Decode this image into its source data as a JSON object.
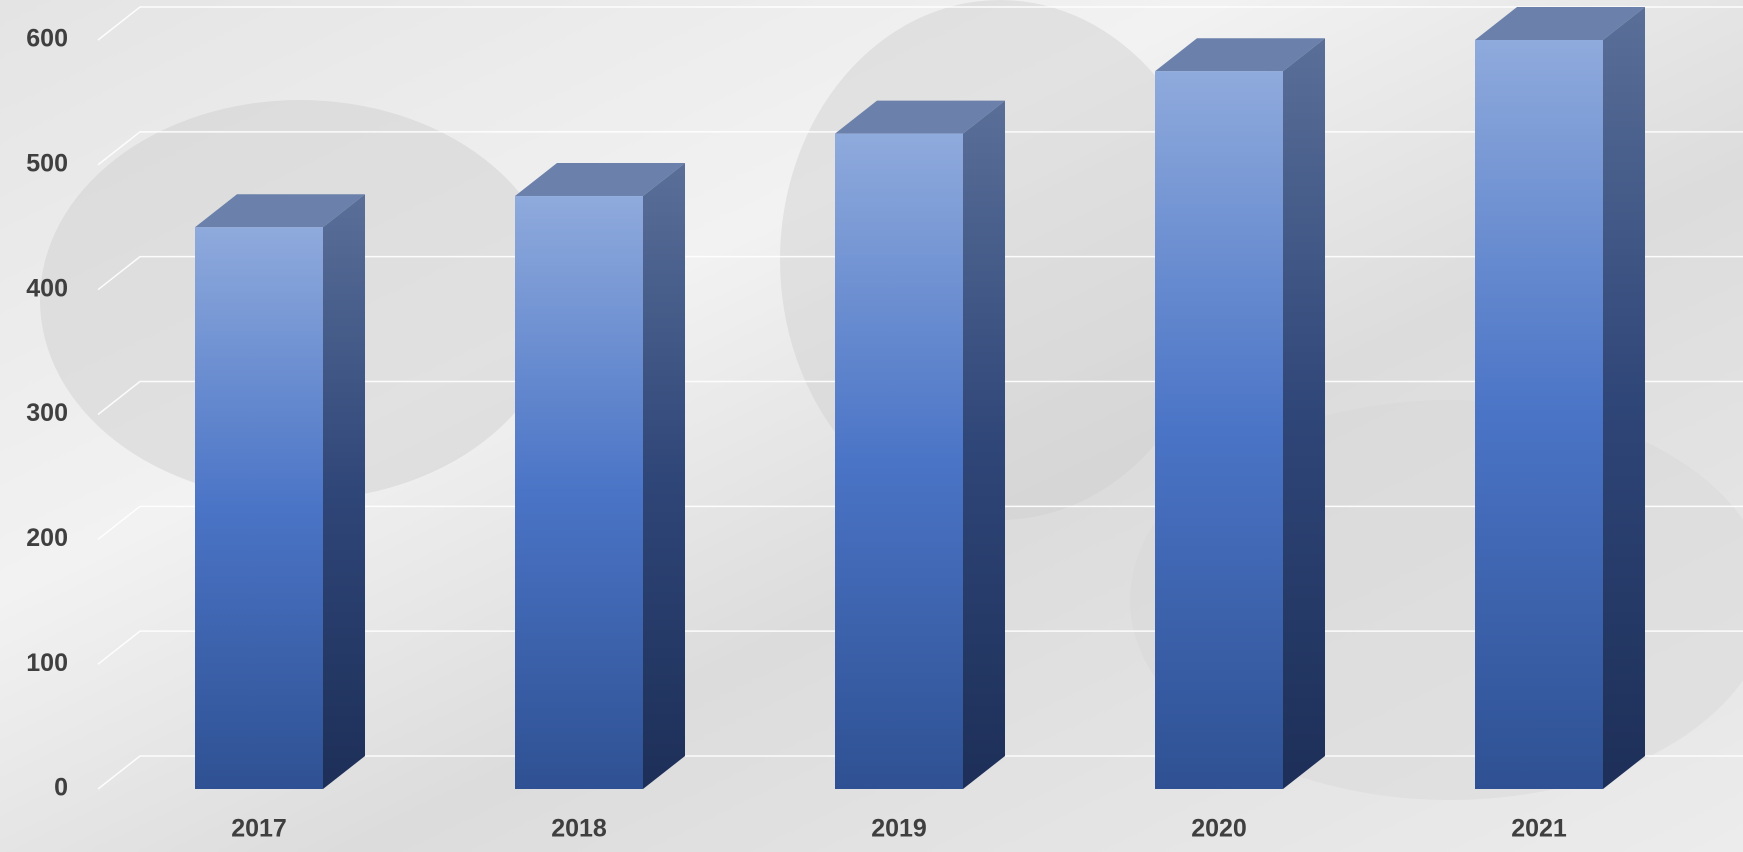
{
  "chart_data": {
    "type": "bar3d",
    "categories": [
      "2017",
      "2018",
      "2019",
      "2020",
      "2021"
    ],
    "values": [
      450,
      475,
      525,
      575,
      600
    ],
    "color": "#4472c4",
    "ylim": [
      0,
      600
    ],
    "yticks": [
      0,
      100,
      200,
      300,
      400,
      500,
      600
    ],
    "grid": true
  }
}
